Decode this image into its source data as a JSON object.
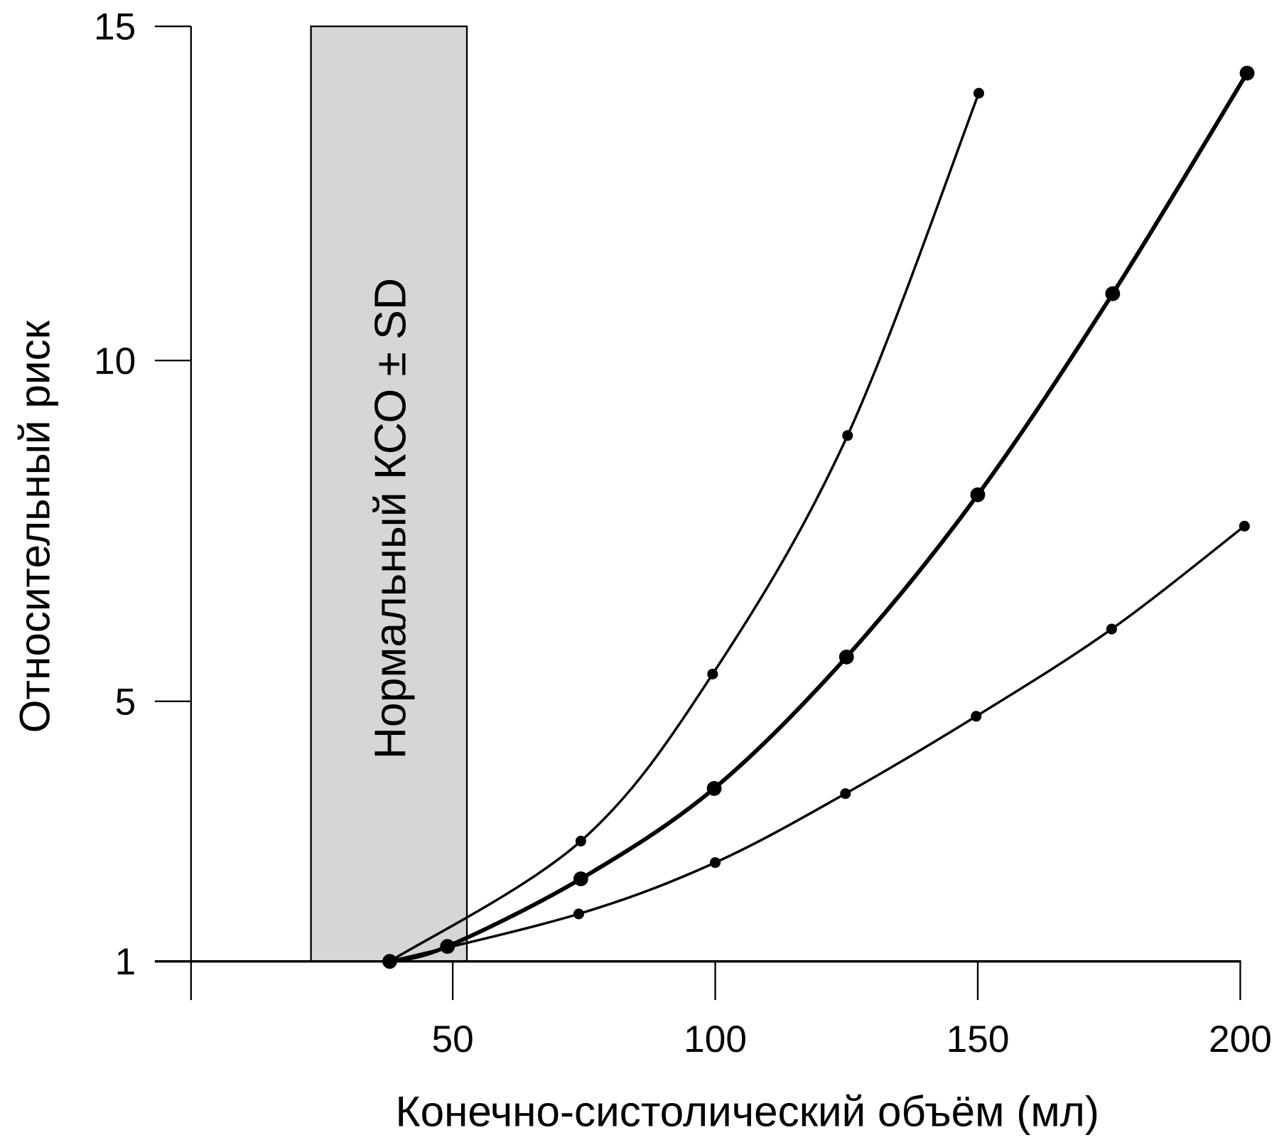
{
  "chart_data": {
    "type": "line",
    "title": "",
    "xlabel": "Конечно-систолический объём (мл)",
    "ylabel": "Относительный риск",
    "xlim": [
      0,
      200
    ],
    "ylim": [
      1,
      15
    ],
    "x_ticks": [
      50,
      100,
      150,
      200
    ],
    "x_tick_labels": [
      "50",
      "100",
      "150",
      "200"
    ],
    "y_ticks": [
      1,
      5,
      10,
      15
    ],
    "y_tick_labels": [
      "1",
      "5",
      "10",
      "15"
    ],
    "grid": false,
    "band": {
      "label": "Нормальный КСО ± SD",
      "x_range": [
        23,
        52.7
      ],
      "color": "#d6d6d6"
    },
    "series": [
      {
        "name": "upper",
        "weight": "thin",
        "x": [
          38,
          74.4,
          99.5,
          125.2,
          150.2
        ],
        "y": [
          1,
          2.85,
          5.4,
          8.9,
          14.0
        ]
      },
      {
        "name": "middle",
        "weight": "thick",
        "x": [
          38,
          49,
          74.4,
          99.8,
          125,
          150,
          175.7,
          201.3
        ],
        "y": [
          1,
          1.23,
          2.27,
          3.66,
          5.65,
          8.03,
          11.0,
          14.3
        ]
      },
      {
        "name": "lower",
        "weight": "thin",
        "x": [
          38,
          74,
          100,
          124.8,
          149.7,
          175.5,
          200.8
        ],
        "y": [
          1,
          1.73,
          2.52,
          3.58,
          4.77,
          6.06,
          7.57
        ]
      }
    ]
  }
}
